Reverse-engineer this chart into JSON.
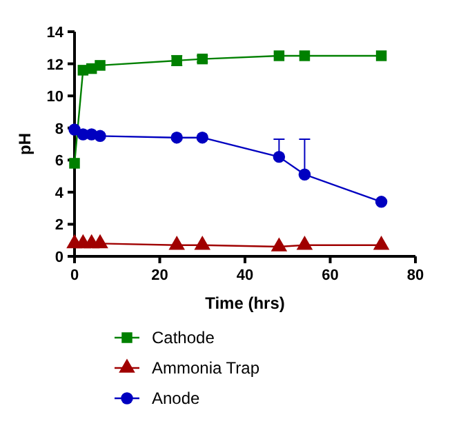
{
  "chart_data": {
    "type": "line",
    "xlabel": "Time (hrs)",
    "ylabel": "pH",
    "xlim": [
      0,
      80
    ],
    "ylim": [
      0,
      14
    ],
    "xticks": [
      0,
      20,
      40,
      60,
      80
    ],
    "yticks": [
      0,
      2,
      4,
      6,
      8,
      10,
      12,
      14
    ],
    "legend": "bottom",
    "grid": false,
    "x": [
      0,
      2,
      4,
      6,
      24,
      30,
      48,
      54,
      72
    ],
    "series": [
      {
        "name": "Cathode",
        "color": "#008000",
        "marker": "square",
        "values": [
          5.8,
          11.6,
          11.7,
          11.9,
          12.2,
          12.3,
          12.5,
          12.5,
          12.5
        ],
        "errors": [
          null,
          null,
          null,
          null,
          0.3,
          0.2,
          null,
          null,
          null
        ]
      },
      {
        "name": "Ammonia Trap",
        "color": "#a00000",
        "marker": "triangle",
        "values": [
          0.8,
          0.8,
          0.8,
          0.8,
          0.7,
          0.7,
          0.6,
          0.7,
          0.7
        ]
      },
      {
        "name": "Anode",
        "color": "#0000c0",
        "marker": "circle",
        "values": [
          7.9,
          7.6,
          7.6,
          7.5,
          7.4,
          7.4,
          6.2,
          5.1,
          3.4
        ],
        "errors": [
          null,
          null,
          null,
          null,
          null,
          null,
          [
            6.2,
            7.3
          ],
          [
            5.1,
            7.3
          ],
          null
        ]
      }
    ]
  }
}
